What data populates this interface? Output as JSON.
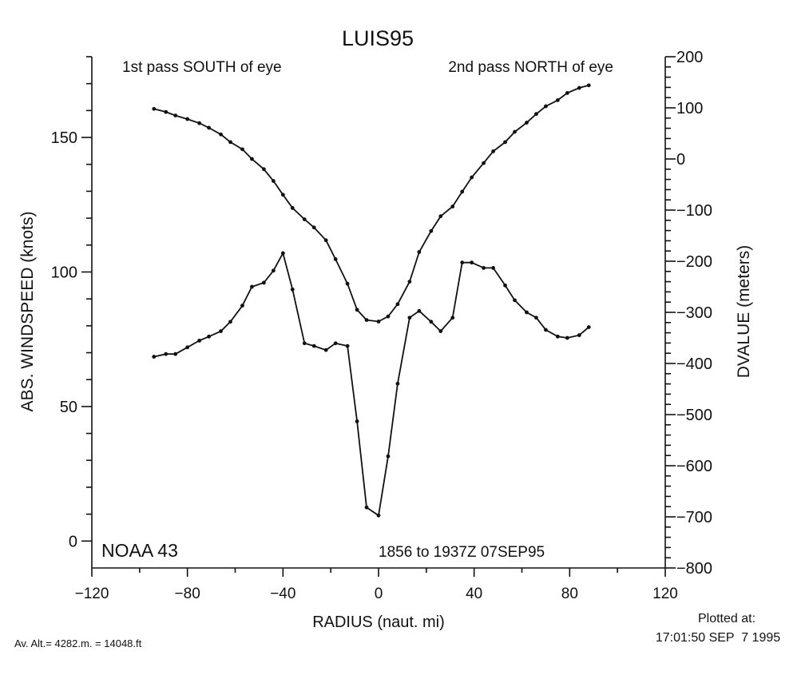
{
  "chart_data": {
    "type": "line",
    "title": "LUIS95",
    "xlabel": "RADIUS (naut. mi)",
    "ylabel": "ABS. WINDSPEED (knots)",
    "y2label": "DVALUE (meters)",
    "xlim": [
      -120,
      120
    ],
    "ylim": [
      -10,
      180
    ],
    "y2lim": [
      -800,
      200
    ],
    "x_ticks": [
      "-120",
      "-80",
      "-40",
      "0",
      "40",
      "80",
      "120"
    ],
    "y_ticks": [
      "0",
      "50",
      "100",
      "150"
    ],
    "y2_ticks": [
      "200",
      "100",
      "0",
      "-100",
      "-200",
      "-300",
      "-400",
      "-500",
      "-600",
      "-700",
      "-800"
    ],
    "annotations": {
      "left_pass": "1st pass SOUTH of eye",
      "right_pass": "2nd pass NORTH of eye",
      "aircraft": "NOAA 43",
      "time_range": "1856 to 1937Z 07SEP95"
    },
    "grid": false,
    "series": [
      {
        "axis": "left",
        "x": [
          -94,
          -89,
          -85,
          -80,
          -75,
          -71,
          -66,
          -62,
          -57,
          -53,
          -48,
          -44,
          -40,
          -36,
          -31,
          -27,
          -22,
          -18,
          -13,
          -9,
          -5,
          0,
          4,
          8,
          13,
          17,
          22,
          26,
          31,
          35,
          39,
          44,
          48,
          53,
          57,
          62,
          66,
          70,
          75,
          79,
          84,
          88
        ],
        "y": [
          68.5,
          69.5,
          69.5,
          72,
          74.5,
          76,
          78,
          81.5,
          87.5,
          94.5,
          96,
          100.5,
          107,
          93.5,
          73.5,
          72.5,
          71,
          73.5,
          72.5,
          44.5,
          12.5,
          9.5,
          31.5,
          58.5,
          83,
          85.5,
          81.5,
          78,
          83,
          103.5,
          103.5,
          101.5,
          101.5,
          95,
          89.5,
          85,
          83,
          78.5,
          76,
          75.5,
          76.5,
          79.5
        ]
      },
      {
        "axis": "right",
        "x": [
          -94,
          -89,
          -85,
          -80,
          -75,
          -71,
          -66,
          -62,
          -57,
          -53,
          -48,
          -44,
          -40,
          -36,
          -31,
          -27,
          -22,
          -18,
          -13,
          -9,
          -5,
          0,
          4,
          8,
          13,
          17,
          22,
          26,
          31,
          35,
          39,
          44,
          48,
          53,
          57,
          62,
          66,
          70,
          75,
          79,
          84,
          88
        ],
        "y": [
          98,
          92,
          85,
          78,
          70,
          61,
          48,
          33,
          19,
          0,
          -20,
          -43,
          -70,
          -96,
          -118,
          -134,
          -159,
          -196,
          -244,
          -295,
          -315,
          -318,
          -308,
          -284,
          -240,
          -182,
          -141,
          -112,
          -93,
          -64,
          -36,
          -8,
          15,
          33,
          53,
          71,
          88,
          103,
          115,
          129,
          139,
          144
        ]
      }
    ]
  },
  "footer": {
    "altitude": "Av. Alt.= 4282.m. = 14048.ft",
    "plotted_label": "Plotted at:",
    "plotted_time": "17:01:50 SEP  7 1995"
  }
}
